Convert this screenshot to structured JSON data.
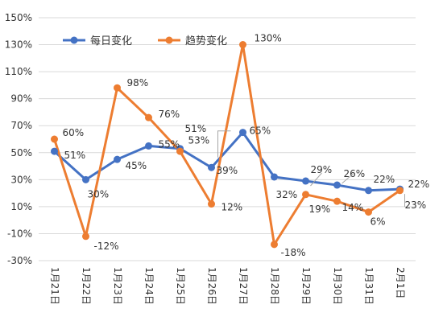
{
  "chart_data": {
    "type": "line",
    "categories": [
      "1月21日",
      "1月22日",
      "1月23日",
      "1月24日",
      "1月25日",
      "1月26日",
      "1月27日",
      "1月28日",
      "1月29日",
      "1月30日",
      "1月31日",
      "2月1日"
    ],
    "series": [
      {
        "name": "每日变化",
        "color": "#4472C4",
        "values": [
          51,
          30,
          45,
          55,
          53,
          39,
          65,
          32,
          29,
          26,
          22,
          23
        ],
        "labels": [
          "51%",
          "30%",
          "45%",
          "55%",
          "53%",
          "39%",
          "65%",
          "32%",
          "29%",
          "26%",
          "22%",
          "23%"
        ]
      },
      {
        "name": "趋势变化",
        "color": "#ED7D31",
        "values": [
          60,
          -12,
          98,
          76,
          51,
          12,
          130,
          -18,
          19,
          14,
          6,
          22
        ],
        "labels": [
          "60%",
          "-12%",
          "98%",
          "76%",
          "51%",
          "12%",
          "130%",
          "-18%",
          "19%",
          "14%",
          "6%",
          "22%"
        ]
      }
    ],
    "ylim": [
      -30,
      150
    ],
    "yticks": [
      "-30%",
      "-10%",
      "10%",
      "30%",
      "50%",
      "70%",
      "90%",
      "110%",
      "130%",
      "150%"
    ],
    "ytick_values": [
      -30,
      -10,
      10,
      30,
      50,
      70,
      90,
      110,
      130,
      150
    ],
    "legend_position": "top-left",
    "grid": true
  }
}
